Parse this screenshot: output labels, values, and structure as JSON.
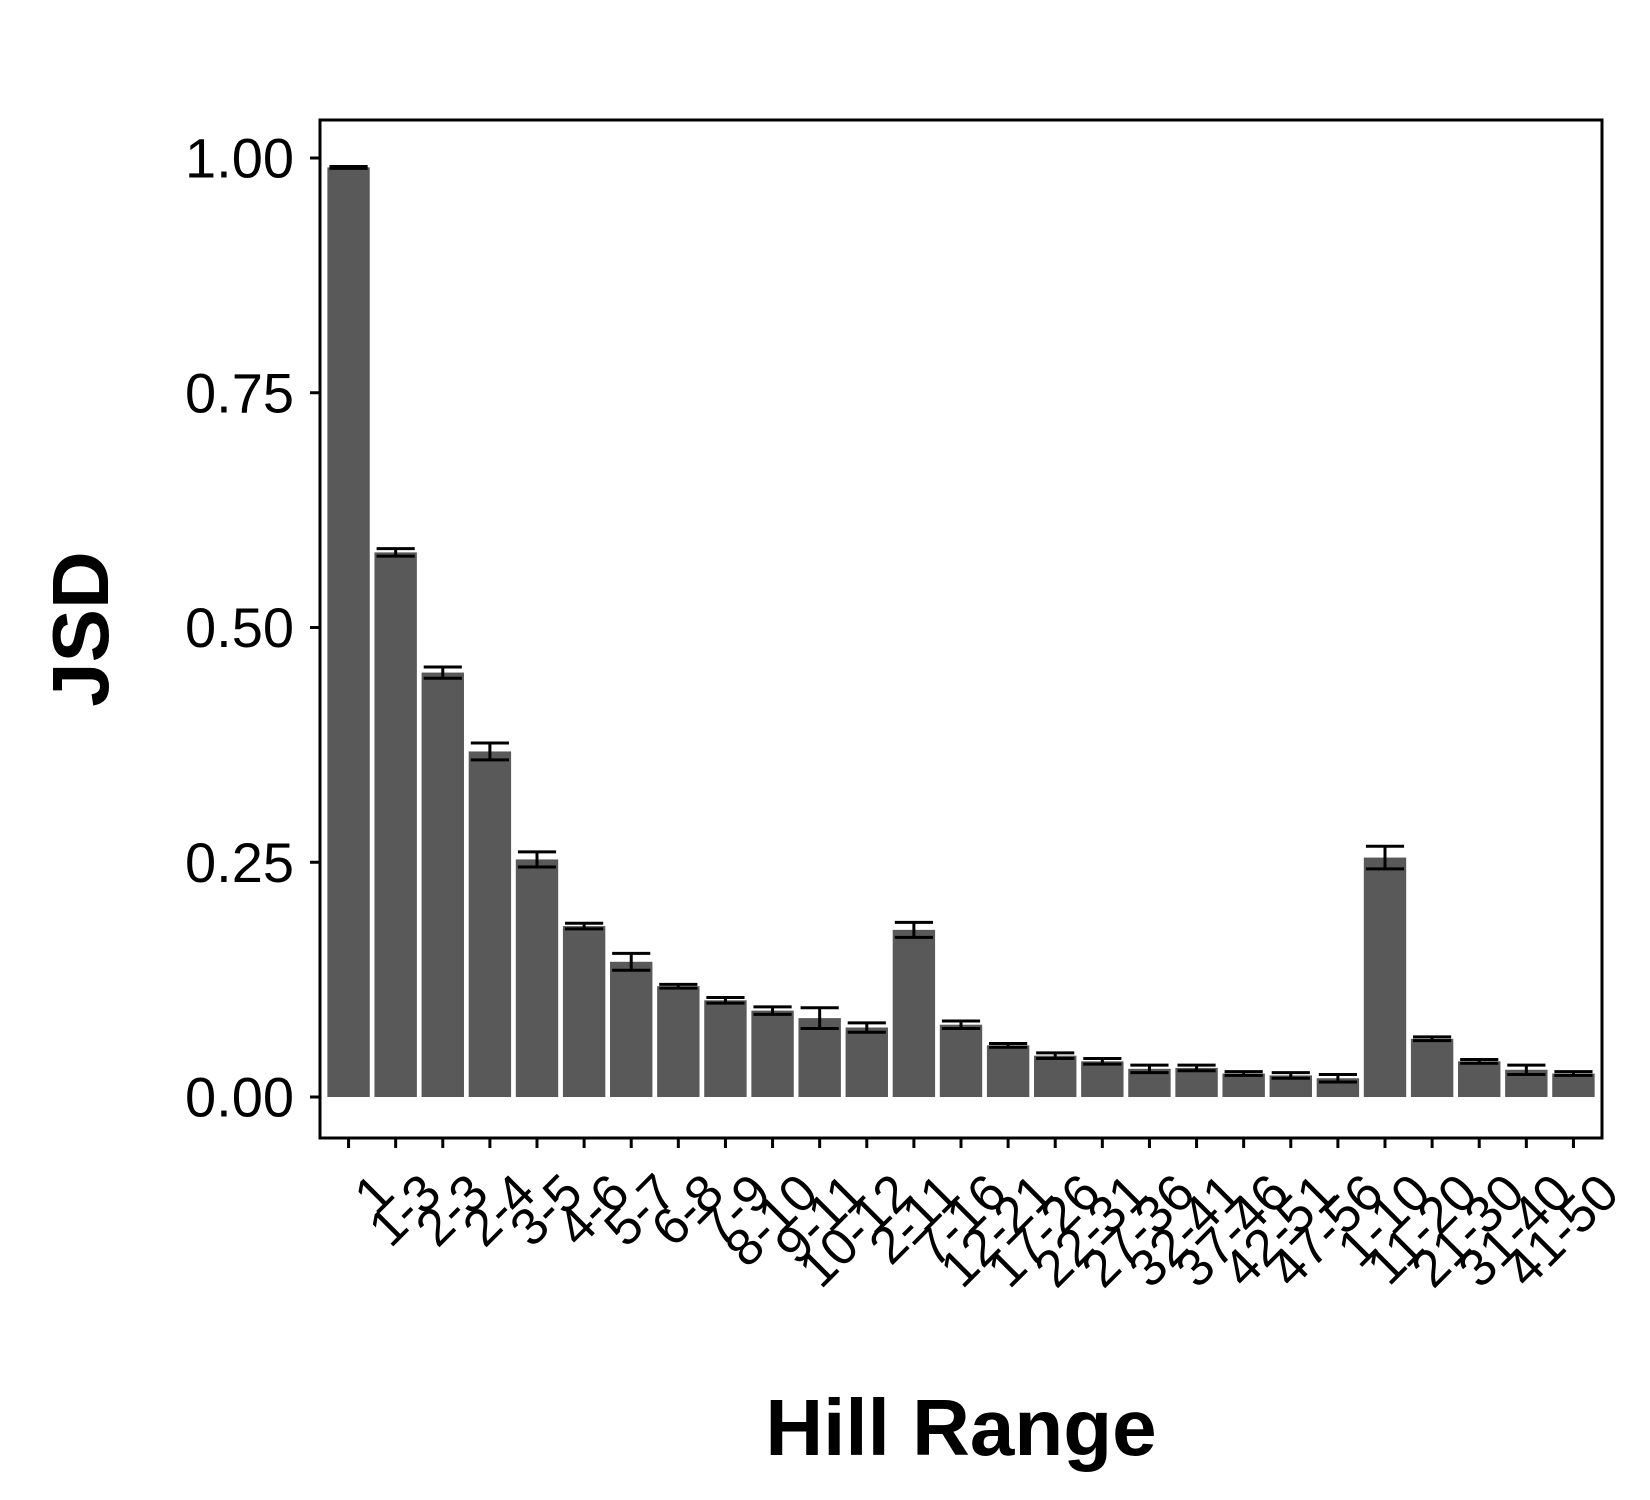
{
  "chart_data": {
    "type": "bar",
    "xlabel": "Hill Range",
    "ylabel": "JSD",
    "ylim": [
      0,
      1
    ],
    "yticks": [
      "0.00",
      "0.25",
      "0.50",
      "0.75",
      "1.00"
    ],
    "ytick_values": [
      0,
      0.25,
      0.5,
      0.75,
      1.0
    ],
    "grid": false,
    "bar_color": "#595959",
    "categories": [
      "1",
      "1-3",
      "2-3",
      "2-4",
      "3-5",
      "4-6",
      "5-7",
      "6-8",
      "7-9",
      "8-10",
      "9-11",
      "10-12",
      "2-11",
      "7-16",
      "12-21",
      "17-26",
      "22-31",
      "27-36",
      "32-41",
      "37-46",
      "42-51",
      "47-56",
      "1-10",
      "11-20",
      "21-30",
      "31-40",
      "41-50"
    ],
    "values": [
      0.99,
      0.58,
      0.452,
      0.368,
      0.253,
      0.182,
      0.144,
      0.118,
      0.103,
      0.092,
      0.084,
      0.074,
      0.178,
      0.077,
      0.055,
      0.044,
      0.038,
      0.03,
      0.031,
      0.025,
      0.023,
      0.02,
      0.255,
      0.062,
      0.038,
      0.029,
      0.025
    ],
    "errors": [
      0.001,
      0.004,
      0.006,
      0.009,
      0.008,
      0.003,
      0.009,
      0.002,
      0.003,
      0.004,
      0.011,
      0.005,
      0.008,
      0.004,
      0.002,
      0.003,
      0.003,
      0.004,
      0.003,
      0.002,
      0.003,
      0.004,
      0.012,
      0.002,
      0.002,
      0.005,
      0.002
    ]
  }
}
